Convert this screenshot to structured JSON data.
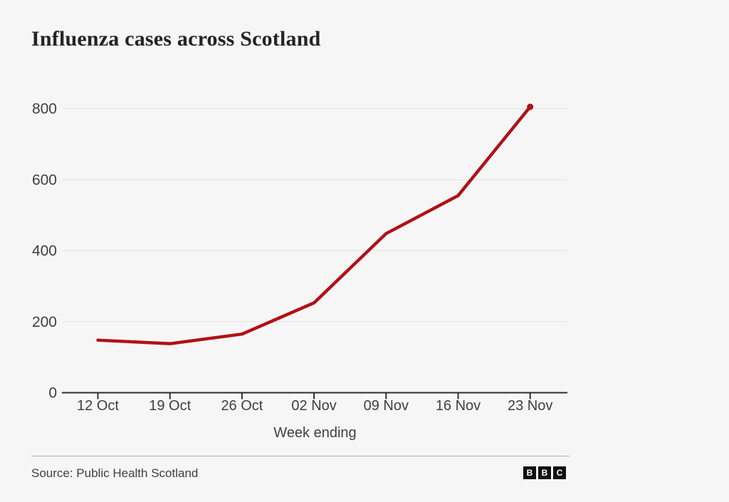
{
  "title": "Influenza cases across Scotland",
  "chart_data": {
    "type": "line",
    "title": "Influenza cases across Scotland",
    "x": [
      "12 Oct",
      "19 Oct",
      "26 Oct",
      "02 Nov",
      "09 Nov",
      "16 Nov",
      "23 Nov"
    ],
    "values": [
      148,
      138,
      165,
      253,
      448,
      555,
      805
    ],
    "xlabel": "Week ending",
    "ylabel": "",
    "ylim": [
      0,
      800
    ],
    "yticks": [
      0,
      200,
      400,
      600,
      800
    ],
    "grid": true,
    "legend": "none",
    "line_color": "#b01116",
    "endpoint_marker": true,
    "axis_color": "#2e2e2e",
    "gridline_color": "#e3e3e3",
    "tick_label_color": "#404040"
  },
  "footer": {
    "source": "Source: Public Health Scotland",
    "logo_letters": [
      "B",
      "B",
      "C"
    ]
  },
  "colors": {
    "background": "#f6f6f6",
    "title": "#242424"
  }
}
